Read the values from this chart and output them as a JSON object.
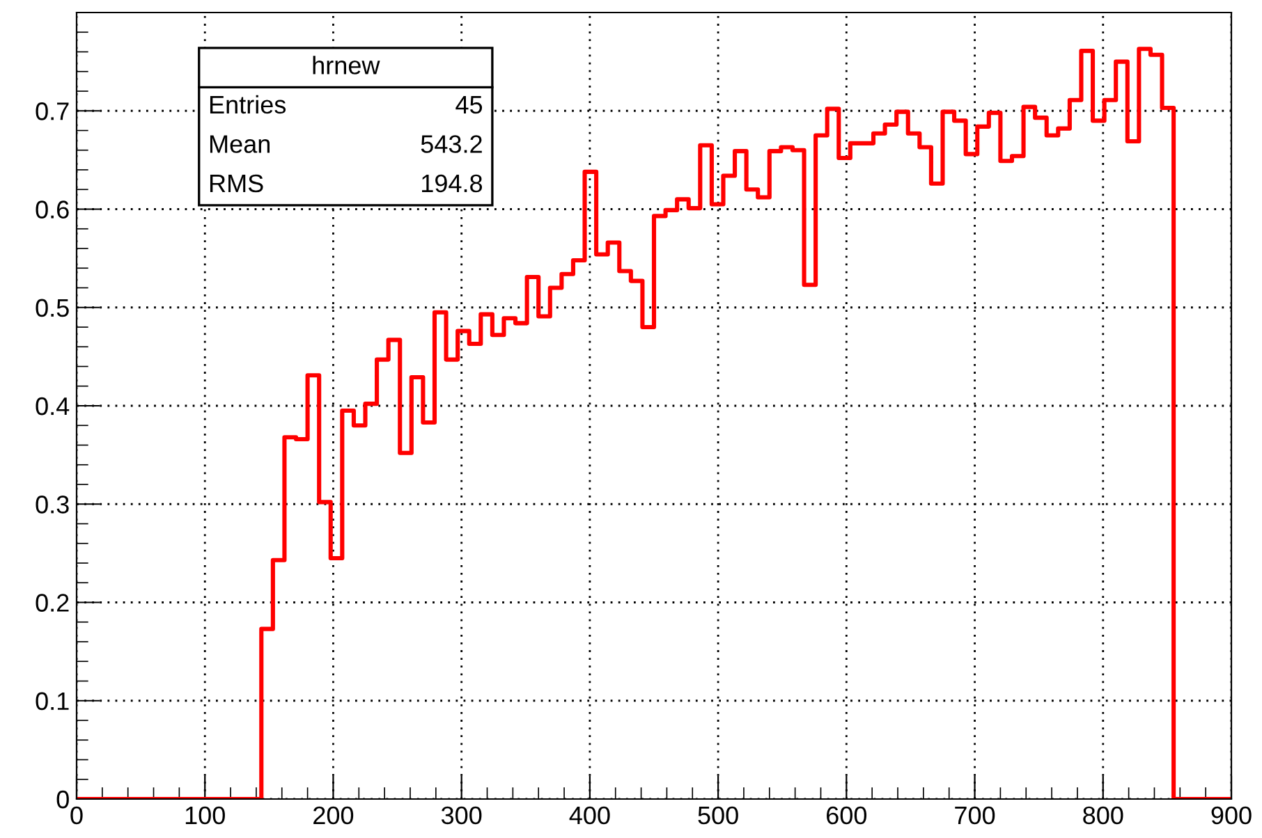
{
  "chart_data": {
    "type": "histogram",
    "bins": [
      0,
      9,
      18,
      27,
      36,
      45,
      54,
      63,
      72,
      81,
      90,
      99,
      108,
      117,
      126,
      135,
      144,
      153,
      162,
      171,
      180,
      189,
      198,
      207,
      216,
      225,
      234,
      243,
      252,
      261,
      270,
      279,
      288,
      297,
      306,
      315,
      324,
      333,
      342,
      351,
      360,
      369,
      378,
      387,
      396,
      405,
      414,
      423,
      432,
      441,
      450,
      459,
      468,
      477,
      486,
      495,
      504,
      513,
      522,
      531,
      540,
      549,
      558,
      567,
      576,
      585,
      594,
      603,
      612,
      621,
      630,
      639,
      648,
      657,
      666,
      675,
      684,
      693,
      702,
      711,
      720,
      729,
      738,
      747,
      756,
      765,
      774,
      783,
      792,
      801,
      810,
      819,
      828,
      837,
      846,
      855,
      864,
      873,
      882,
      891,
      900
    ],
    "values": [
      0,
      0,
      0,
      0,
      0,
      0,
      0,
      0,
      0,
      0,
      0,
      0,
      0,
      0,
      0,
      0,
      0.173,
      0.243,
      0.368,
      0.366,
      0.431,
      0.302,
      0.245,
      0.395,
      0.38,
      0.402,
      0.447,
      0.467,
      0.352,
      0.429,
      0.383,
      0.495,
      0.447,
      0.476,
      0.463,
      0.493,
      0.472,
      0.489,
      0.484,
      0.531,
      0.491,
      0.52,
      0.534,
      0.548,
      0.638,
      0.554,
      0.566,
      0.537,
      0.527,
      0.48,
      0.593,
      0.599,
      0.61,
      0.601,
      0.665,
      0.605,
      0.634,
      0.659,
      0.62,
      0.612,
      0.659,
      0.663,
      0.66,
      0.523,
      0.675,
      0.702,
      0.652,
      0.667,
      0.667,
      0.677,
      0.686,
      0.699,
      0.677,
      0.663,
      0.626,
      0.699,
      0.69,
      0.656,
      0.684,
      0.698,
      0.649,
      0.654,
      0.704,
      0.693,
      0.675,
      0.682,
      0.711,
      0.761,
      0.69,
      0.711,
      0.75,
      0.669,
      0.763,
      0.757,
      0.703,
      0,
      0,
      0,
      0,
      0
    ],
    "color": "#ff0000",
    "xlim": [
      0,
      900
    ],
    "xticks": [
      0,
      100,
      200,
      300,
      400,
      500,
      600,
      700,
      800,
      900
    ],
    "ylim": [
      0,
      0.8
    ],
    "yticks": [
      0,
      0.1,
      0.2,
      0.3,
      0.4,
      0.5,
      0.6,
      0.7
    ],
    "grid": true,
    "annotations": [
      "hrnew",
      "Entries",
      "45",
      "Mean",
      "543.2",
      "RMS",
      "194.8"
    ]
  }
}
